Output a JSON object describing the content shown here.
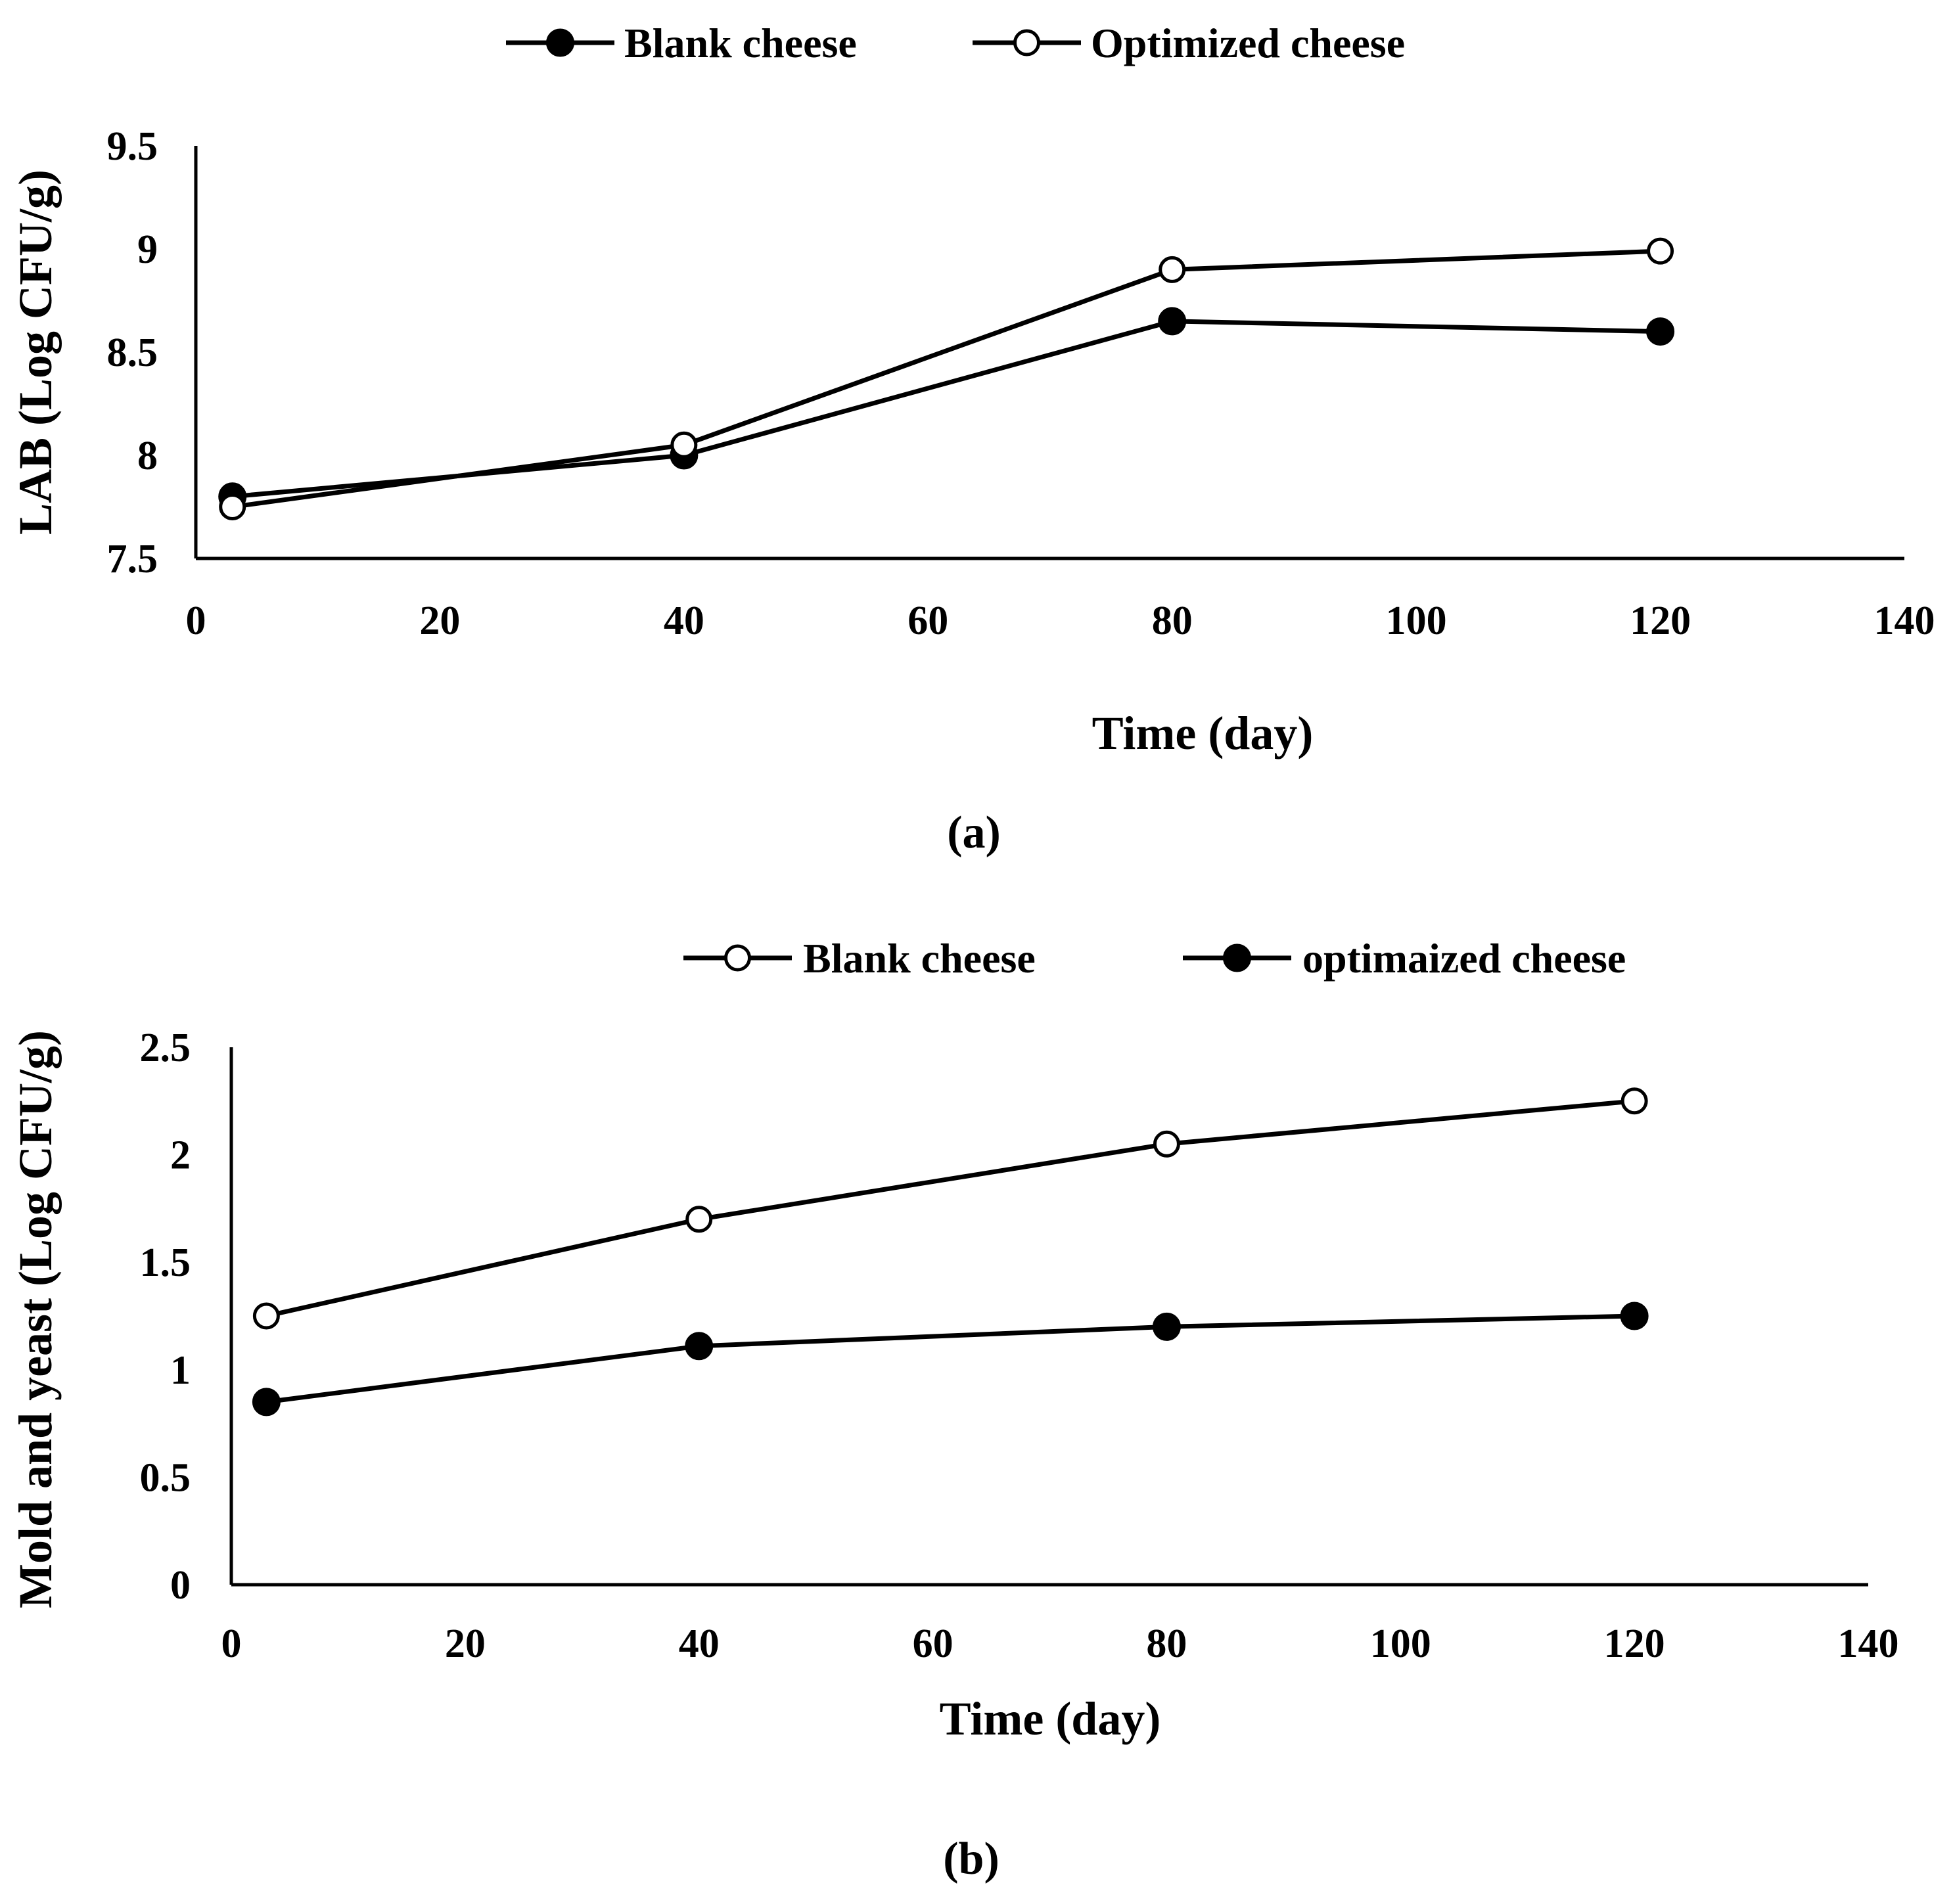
{
  "chart_data": [
    {
      "type": "line",
      "panel_label": "(a)",
      "xlabel": "Time (day)",
      "ylabel": "LAB (Log CFU/g)",
      "xlim": [
        0,
        140
      ],
      "ylim": [
        7.5,
        9.5
      ],
      "x_ticks": [
        0,
        20,
        40,
        60,
        80,
        100,
        120,
        140
      ],
      "y_ticks": [
        7.5,
        8,
        8.5,
        9,
        9.5
      ],
      "x_tick_labels": [
        "0",
        "20",
        "40",
        "60",
        "80",
        "100",
        "120",
        "140"
      ],
      "y_tick_labels": [
        "7.5",
        "8",
        "8.5",
        "9",
        "9.5"
      ],
      "grid": false,
      "legend_position": "top-center",
      "series": [
        {
          "name": "Blank cheese",
          "marker": "filled",
          "x": [
            3,
            40,
            80,
            120
          ],
          "y": [
            7.8,
            8.0,
            8.65,
            8.6
          ]
        },
        {
          "name": "Optimized cheese",
          "marker": "open",
          "x": [
            3,
            40,
            80,
            120
          ],
          "y": [
            7.75,
            8.05,
            8.9,
            8.99
          ]
        }
      ]
    },
    {
      "type": "line",
      "panel_label": "(b)",
      "xlabel": "Time (day)",
      "ylabel": "Mold and yeast (Log CFU/g)",
      "xlim": [
        0,
        140
      ],
      "ylim": [
        0,
        2.5
      ],
      "x_ticks": [
        0,
        20,
        40,
        60,
        80,
        100,
        120,
        140
      ],
      "y_ticks": [
        0,
        0.5,
        1,
        1.5,
        2,
        2.5
      ],
      "x_tick_labels": [
        "0",
        "20",
        "40",
        "60",
        "80",
        "100",
        "120",
        "140"
      ],
      "y_tick_labels": [
        "0",
        "0.5",
        "1",
        "1.5",
        "2",
        "2.5"
      ],
      "grid": false,
      "legend_position": "top-right",
      "series": [
        {
          "name": "Blank cheese",
          "marker": "open",
          "x": [
            3,
            40,
            80,
            120
          ],
          "y": [
            1.25,
            1.7,
            2.05,
            2.25
          ]
        },
        {
          "name": "optimaized cheese",
          "marker": "filled",
          "x": [
            3,
            40,
            80,
            120
          ],
          "y": [
            0.85,
            1.11,
            1.2,
            1.25
          ]
        }
      ]
    }
  ]
}
